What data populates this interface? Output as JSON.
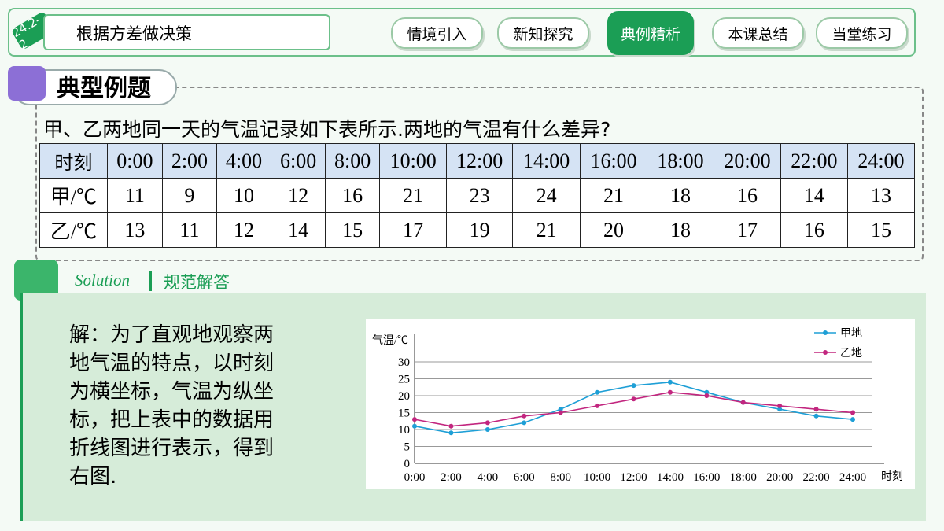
{
  "header": {
    "badge": "24.2-2",
    "title": "根据方差做决策"
  },
  "nav": [
    "情境引入",
    "新知探究",
    "典例精析",
    "本课总结",
    "当堂练习"
  ],
  "section_title": "典型例题",
  "question": "甲、乙两地同一天的气温记录如下表所示.两地的气温有什么差异?",
  "table": {
    "row_labels": [
      "甲/℃",
      "乙/℃"
    ]
  },
  "solution": {
    "label": "Solution",
    "title": "规范解答",
    "lines": [
      "解：为了直观地观察两",
      "地气温的特点，以时刻",
      "为横坐标，气温为纵坐",
      "标，把上表中的数据用",
      "折线图进行表示，得到",
      "右图."
    ]
  },
  "chart_data": {
    "type": "line",
    "y_label": "气温/℃",
    "x_label": "时刻",
    "categories": [
      "0:00",
      "2:00",
      "4:00",
      "6:00",
      "8:00",
      "10:00",
      "12:00",
      "14:00",
      "16:00",
      "18:00",
      "20:00",
      "22:00",
      "24:00"
    ],
    "series": [
      {
        "name": "甲地",
        "color": "#1e9fd6",
        "values": [
          11,
          9,
          10,
          12,
          16,
          21,
          23,
          24,
          21,
          18,
          16,
          14,
          13
        ]
      },
      {
        "name": "乙地",
        "color": "#c2267f",
        "values": [
          13,
          11,
          12,
          14,
          15,
          17,
          19,
          21,
          20,
          18,
          17,
          16,
          15
        ]
      }
    ],
    "ylim": [
      0,
      30
    ],
    "yticks": [
      0,
      5,
      10,
      15,
      20,
      25,
      30
    ],
    "grid": true
  }
}
